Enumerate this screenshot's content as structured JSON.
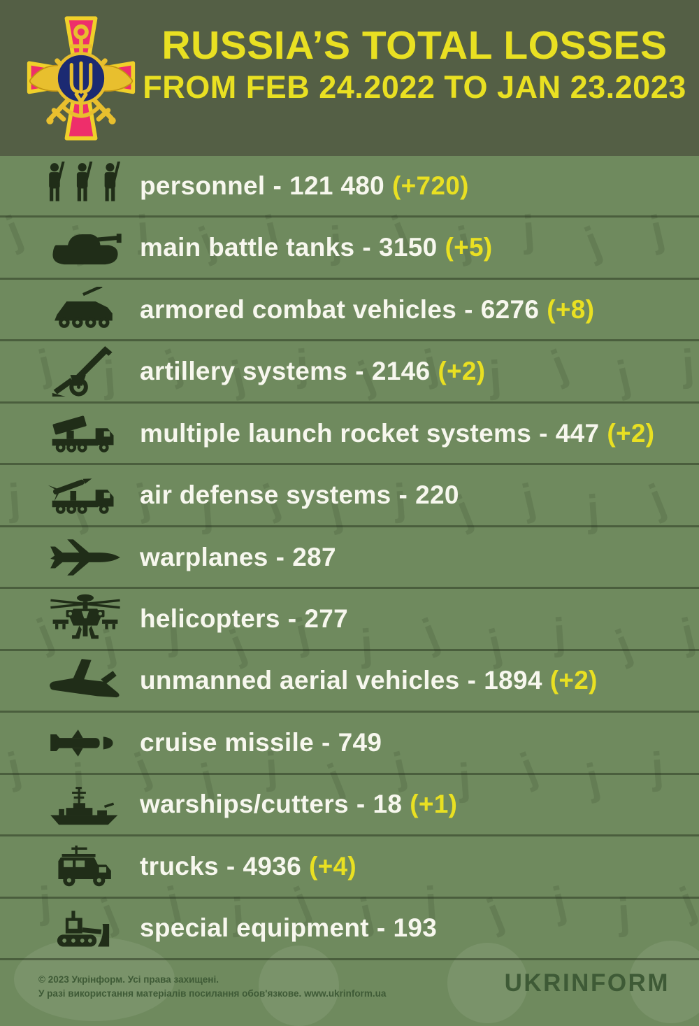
{
  "header": {
    "title": "RUSSIA’S TOTAL LOSSES",
    "subtitle": "FROM FEB 24.2022 TO JAN 23.2023",
    "emblem": "ukraine-armed-forces-emblem"
  },
  "ui": {
    "dash": "-"
  },
  "colors": {
    "header_bg": "#545f45",
    "body_bg": "#6f8a5e",
    "accent_yellow": "#e9e022",
    "icon_dark": "#202d18",
    "text_white": "#f7f7ee",
    "footer_text": "#3e5a36"
  },
  "rows": [
    {
      "icon": "personnel-icon",
      "label": "personnel",
      "value": "121 480",
      "delta": "(+720)"
    },
    {
      "icon": "tank-icon",
      "label": "main battle tanks",
      "value": "3150",
      "delta": "(+5)"
    },
    {
      "icon": "armored-vehicle-icon",
      "label": "armored combat vehicles",
      "value": "6276",
      "delta": "(+8)"
    },
    {
      "icon": "artillery-icon",
      "label": "artillery systems",
      "value": "2146",
      "delta": "(+2)"
    },
    {
      "icon": "mlrs-icon",
      "label": "multiple launch rocket systems",
      "value": "447",
      "delta": "(+2)"
    },
    {
      "icon": "air-defense-icon",
      "label": "air defense systems",
      "value": "220",
      "delta": ""
    },
    {
      "icon": "warplane-icon",
      "label": "warplanes",
      "value": "287",
      "delta": ""
    },
    {
      "icon": "helicopter-icon",
      "label": "helicopters",
      "value": "277",
      "delta": ""
    },
    {
      "icon": "uav-icon",
      "label": "unmanned aerial vehicles",
      "value": "1894",
      "delta": "(+2)"
    },
    {
      "icon": "cruise-missile-icon",
      "label": "cruise missile",
      "value": "749",
      "delta": ""
    },
    {
      "icon": "warship-icon",
      "label": "warships/cutters",
      "value": "18",
      "delta": "(+1)"
    },
    {
      "icon": "truck-icon",
      "label": "trucks",
      "value": "4936",
      "delta": "(+4)"
    },
    {
      "icon": "special-equipment-icon",
      "label": "special equipment",
      "value": "193",
      "delta": ""
    }
  ],
  "chart_data": {
    "type": "table",
    "title": "RUSSIA’S TOTAL LOSSES FROM FEB 24.2022 TO JAN 23.2023",
    "categories": [
      "personnel",
      "main battle tanks",
      "armored combat vehicles",
      "artillery systems",
      "multiple launch rocket systems",
      "air defense systems",
      "warplanes",
      "helicopters",
      "unmanned aerial vehicles",
      "cruise missile",
      "warships/cutters",
      "trucks",
      "special equipment"
    ],
    "series": [
      {
        "name": "total",
        "values": [
          121480,
          3150,
          6276,
          2146,
          447,
          220,
          287,
          277,
          1894,
          749,
          18,
          4936,
          193
        ]
      },
      {
        "name": "daily_change",
        "values": [
          720,
          5,
          8,
          2,
          2,
          null,
          null,
          null,
          2,
          null,
          1,
          4,
          null
        ]
      }
    ]
  },
  "footer": {
    "copyright_line1": "© 2023 Укрінформ. Усі права захищені.",
    "copyright_line2": "У разі використання матеріалів посилання обов'язкове. www.ukrinform.ua",
    "logo": "UKRINFORM"
  }
}
